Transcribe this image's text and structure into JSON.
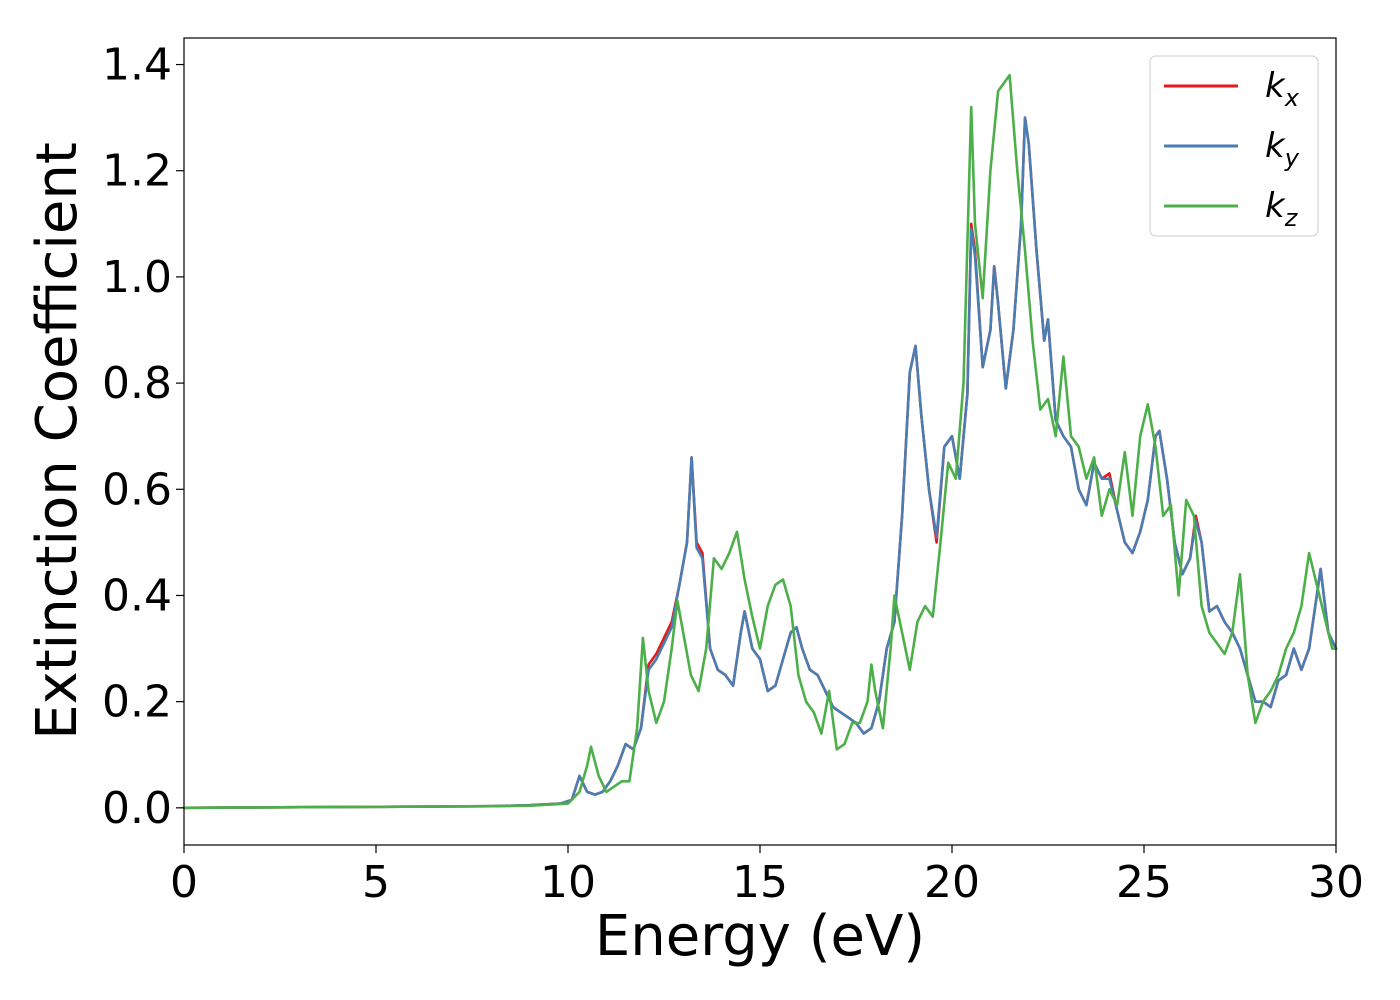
{
  "chart_data": {
    "type": "line",
    "title": "",
    "xlabel": "Energy (eV)",
    "ylabel": "Extinction Coefficient",
    "xlim": [
      0,
      30
    ],
    "ylim": [
      -0.07,
      1.45
    ],
    "xticks": [
      0,
      5,
      10,
      15,
      20,
      25,
      30
    ],
    "xtick_labels": [
      "0",
      "5",
      "10",
      "15",
      "20",
      "25",
      "30"
    ],
    "yticks": [
      0.0,
      0.2,
      0.4,
      0.6,
      0.8,
      1.0,
      1.2,
      1.4
    ],
    "ytick_labels": [
      "0.0",
      "0.2",
      "0.4",
      "0.6",
      "0.8",
      "1.0",
      "1.2",
      "1.4"
    ],
    "grid": false,
    "legend_position": "top-right",
    "series": [
      {
        "name": "k_x",
        "legend_base": "k",
        "legend_sub": "x",
        "color": "#e41a1c",
        "x": [
          0,
          5,
          8,
          9,
          9.8,
          10.1,
          10.3,
          10.5,
          10.7,
          10.9,
          11.1,
          11.3,
          11.5,
          11.7,
          11.9,
          12.1,
          12.3,
          12.5,
          12.7,
          12.9,
          13.1,
          13.22,
          13.35,
          13.5,
          13.7,
          13.9,
          14.1,
          14.3,
          14.5,
          14.6,
          14.8,
          15.0,
          15.2,
          15.4,
          15.6,
          15.8,
          15.95,
          16.1,
          16.3,
          16.5,
          16.7,
          16.9,
          17.1,
          17.3,
          17.5,
          17.7,
          17.9,
          18.1,
          18.3,
          18.5,
          18.7,
          18.9,
          19.05,
          19.2,
          19.4,
          19.6,
          19.8,
          20.0,
          20.2,
          20.4,
          20.5,
          20.6,
          20.8,
          21.0,
          21.1,
          21.2,
          21.4,
          21.6,
          21.8,
          21.9,
          22.0,
          22.2,
          22.4,
          22.5,
          22.7,
          22.9,
          23.1,
          23.3,
          23.5,
          23.7,
          23.9,
          24.1,
          24.3,
          24.5,
          24.7,
          24.9,
          25.1,
          25.3,
          25.4,
          25.6,
          25.8,
          26.0,
          26.2,
          26.35,
          26.5,
          26.7,
          26.9,
          27.1,
          27.3,
          27.5,
          27.7,
          27.9,
          28.1,
          28.3,
          28.5,
          28.7,
          28.9,
          29.1,
          29.3,
          29.5,
          29.6,
          29.8,
          30.0
        ],
        "y": [
          0.0,
          0.002,
          0.003,
          0.005,
          0.008,
          0.015,
          0.06,
          0.03,
          0.025,
          0.03,
          0.05,
          0.08,
          0.12,
          0.11,
          0.15,
          0.27,
          0.29,
          0.32,
          0.35,
          0.42,
          0.5,
          0.66,
          0.5,
          0.48,
          0.3,
          0.26,
          0.25,
          0.23,
          0.33,
          0.37,
          0.3,
          0.28,
          0.22,
          0.23,
          0.28,
          0.33,
          0.34,
          0.3,
          0.26,
          0.25,
          0.22,
          0.19,
          0.18,
          0.17,
          0.16,
          0.14,
          0.15,
          0.2,
          0.3,
          0.35,
          0.55,
          0.82,
          0.87,
          0.74,
          0.6,
          0.5,
          0.68,
          0.7,
          0.62,
          0.78,
          1.1,
          1.05,
          0.83,
          0.9,
          1.02,
          0.95,
          0.79,
          0.9,
          1.1,
          1.3,
          1.25,
          1.05,
          0.88,
          0.92,
          0.73,
          0.7,
          0.68,
          0.6,
          0.57,
          0.65,
          0.62,
          0.63,
          0.56,
          0.5,
          0.48,
          0.52,
          0.58,
          0.7,
          0.71,
          0.62,
          0.5,
          0.44,
          0.47,
          0.55,
          0.5,
          0.37,
          0.38,
          0.35,
          0.33,
          0.3,
          0.25,
          0.2,
          0.2,
          0.19,
          0.24,
          0.25,
          0.3,
          0.26,
          0.3,
          0.4,
          0.45,
          0.33,
          0.3
        ]
      },
      {
        "name": "k_y",
        "legend_base": "k",
        "legend_sub": "y",
        "color": "#4a7eb3",
        "x": [
          0,
          5,
          8,
          9,
          9.8,
          10.1,
          10.3,
          10.5,
          10.7,
          10.9,
          11.1,
          11.3,
          11.5,
          11.7,
          11.9,
          12.1,
          12.3,
          12.5,
          12.7,
          12.9,
          13.1,
          13.22,
          13.35,
          13.5,
          13.7,
          13.9,
          14.1,
          14.3,
          14.5,
          14.6,
          14.8,
          15.0,
          15.2,
          15.4,
          15.6,
          15.8,
          15.95,
          16.1,
          16.3,
          16.5,
          16.7,
          16.9,
          17.1,
          17.3,
          17.5,
          17.7,
          17.9,
          18.1,
          18.3,
          18.5,
          18.7,
          18.9,
          19.05,
          19.2,
          19.4,
          19.6,
          19.8,
          20.0,
          20.2,
          20.4,
          20.5,
          20.6,
          20.8,
          21.0,
          21.1,
          21.2,
          21.4,
          21.6,
          21.8,
          21.9,
          22.0,
          22.2,
          22.4,
          22.5,
          22.7,
          22.9,
          23.1,
          23.3,
          23.5,
          23.7,
          23.9,
          24.1,
          24.3,
          24.5,
          24.7,
          24.9,
          25.1,
          25.3,
          25.4,
          25.6,
          25.8,
          26.0,
          26.2,
          26.35,
          26.5,
          26.7,
          26.9,
          27.1,
          27.3,
          27.5,
          27.7,
          27.9,
          28.1,
          28.3,
          28.5,
          28.7,
          28.9,
          29.1,
          29.3,
          29.5,
          29.6,
          29.8,
          30.0
        ],
        "y": [
          0.0,
          0.002,
          0.003,
          0.005,
          0.008,
          0.015,
          0.06,
          0.03,
          0.025,
          0.03,
          0.05,
          0.08,
          0.12,
          0.11,
          0.15,
          0.26,
          0.28,
          0.31,
          0.34,
          0.42,
          0.5,
          0.66,
          0.49,
          0.47,
          0.3,
          0.26,
          0.25,
          0.23,
          0.33,
          0.37,
          0.3,
          0.28,
          0.22,
          0.23,
          0.28,
          0.33,
          0.34,
          0.3,
          0.26,
          0.25,
          0.22,
          0.19,
          0.18,
          0.17,
          0.16,
          0.14,
          0.15,
          0.2,
          0.3,
          0.35,
          0.55,
          0.82,
          0.87,
          0.74,
          0.6,
          0.51,
          0.68,
          0.7,
          0.62,
          0.78,
          1.09,
          1.04,
          0.83,
          0.9,
          1.02,
          0.95,
          0.79,
          0.9,
          1.1,
          1.3,
          1.25,
          1.05,
          0.88,
          0.92,
          0.73,
          0.7,
          0.68,
          0.6,
          0.57,
          0.65,
          0.62,
          0.62,
          0.56,
          0.5,
          0.48,
          0.52,
          0.58,
          0.7,
          0.71,
          0.62,
          0.5,
          0.44,
          0.47,
          0.54,
          0.5,
          0.37,
          0.38,
          0.35,
          0.33,
          0.3,
          0.25,
          0.2,
          0.2,
          0.19,
          0.24,
          0.25,
          0.3,
          0.26,
          0.3,
          0.4,
          0.45,
          0.33,
          0.3
        ]
      },
      {
        "name": "k_z",
        "legend_base": "k",
        "legend_sub": "z",
        "color": "#4daf4a",
        "x": [
          0,
          5,
          8,
          9,
          10.0,
          10.3,
          10.5,
          10.6,
          10.8,
          11.0,
          11.2,
          11.4,
          11.6,
          11.8,
          11.95,
          12.1,
          12.3,
          12.5,
          12.7,
          12.85,
          13.0,
          13.2,
          13.4,
          13.6,
          13.8,
          14.0,
          14.2,
          14.4,
          14.6,
          14.8,
          15.0,
          15.2,
          15.4,
          15.6,
          15.8,
          16.0,
          16.2,
          16.4,
          16.6,
          16.8,
          17.0,
          17.2,
          17.4,
          17.6,
          17.8,
          17.9,
          18.0,
          18.2,
          18.4,
          18.5,
          18.7,
          18.9,
          19.1,
          19.3,
          19.5,
          19.7,
          19.9,
          20.1,
          20.3,
          20.5,
          20.6,
          20.8,
          21.0,
          21.2,
          21.4,
          21.5,
          21.7,
          21.9,
          22.1,
          22.3,
          22.5,
          22.7,
          22.9,
          23.1,
          23.3,
          23.5,
          23.7,
          23.9,
          24.1,
          24.3,
          24.5,
          24.7,
          24.9,
          25.1,
          25.3,
          25.5,
          25.7,
          25.9,
          26.1,
          26.3,
          26.5,
          26.7,
          26.9,
          27.1,
          27.3,
          27.5,
          27.7,
          27.9,
          28.1,
          28.3,
          28.5,
          28.7,
          28.9,
          29.1,
          29.3,
          29.5,
          29.7,
          29.9,
          30.0
        ],
        "y": [
          0.0,
          0.002,
          0.003,
          0.004,
          0.008,
          0.03,
          0.08,
          0.115,
          0.06,
          0.03,
          0.04,
          0.05,
          0.05,
          0.15,
          0.32,
          0.22,
          0.16,
          0.2,
          0.3,
          0.39,
          0.33,
          0.25,
          0.22,
          0.3,
          0.47,
          0.45,
          0.48,
          0.52,
          0.43,
          0.36,
          0.3,
          0.38,
          0.42,
          0.43,
          0.38,
          0.25,
          0.2,
          0.18,
          0.14,
          0.22,
          0.11,
          0.12,
          0.16,
          0.16,
          0.2,
          0.27,
          0.22,
          0.15,
          0.3,
          0.4,
          0.33,
          0.26,
          0.35,
          0.38,
          0.36,
          0.5,
          0.65,
          0.62,
          0.8,
          1.32,
          1.1,
          0.96,
          1.2,
          1.35,
          1.37,
          1.38,
          1.2,
          1.05,
          0.88,
          0.75,
          0.77,
          0.7,
          0.85,
          0.7,
          0.68,
          0.62,
          0.66,
          0.55,
          0.6,
          0.57,
          0.67,
          0.55,
          0.7,
          0.76,
          0.68,
          0.55,
          0.57,
          0.4,
          0.58,
          0.55,
          0.38,
          0.33,
          0.31,
          0.29,
          0.33,
          0.44,
          0.25,
          0.16,
          0.2,
          0.22,
          0.25,
          0.3,
          0.33,
          0.38,
          0.48,
          0.42,
          0.36,
          0.3,
          0.3
        ]
      }
    ]
  }
}
